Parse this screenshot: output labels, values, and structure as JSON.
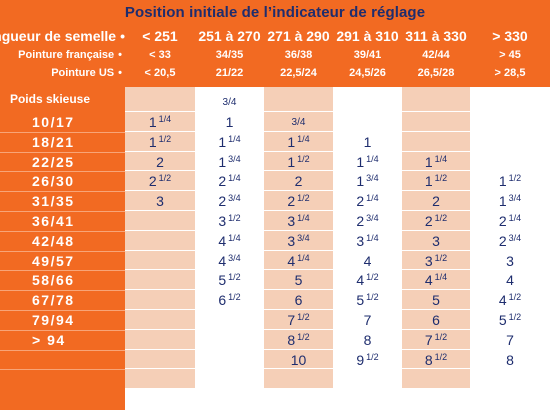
{
  "title": "Position initiale de l’indicateur de réglage",
  "header_labels": {
    "sole_length": "Longueur de semelle",
    "french_size": "Pointure française",
    "us_size": "Pointure US",
    "bullet": "•"
  },
  "columns": [
    {
      "sole": "< 251",
      "french": "< 33",
      "us": "< 20,5"
    },
    {
      "sole": "251 à 270",
      "french": "34/35",
      "us": "21/22"
    },
    {
      "sole": "271 à 290",
      "french": "36/38",
      "us": "22,5/24"
    },
    {
      "sole": "291 à 310",
      "french": "39/41",
      "us": "24,5/26"
    },
    {
      "sole": "311 à 330",
      "french": "42/44",
      "us": "26,5/28"
    },
    {
      "sole": "> 330",
      "french": "> 45",
      "us": "> 28,5"
    }
  ],
  "weight_header": "Poids skieuse",
  "weights": [
    "10/17",
    "18/21",
    "22/25",
    "26/30",
    "31/35",
    "36/41",
    "42/48",
    "49/57",
    "58/66",
    "67/78",
    "79/94",
    "> 94",
    ""
  ],
  "values": [
    [
      "",
      "3/4",
      "",
      "",
      "",
      ""
    ],
    [
      "1 1/4",
      "1",
      "3/4",
      "",
      "",
      ""
    ],
    [
      "1 1/2",
      "1 1/4",
      "1 1/4",
      "1",
      "",
      ""
    ],
    [
      "2",
      "1 3/4",
      "1 1/2",
      "1 1/4",
      "1 1/4",
      ""
    ],
    [
      "2 1/2",
      "2 1/4",
      "2",
      "1 3/4",
      "1 1/2",
      "1 1/2"
    ],
    [
      "3",
      "2 3/4",
      "2 1/2",
      "2 1/4",
      "2",
      "1 3/4"
    ],
    [
      "",
      "3 1/2",
      "3 1/4",
      "2 3/4",
      "2 1/2",
      "2 1/4"
    ],
    [
      "",
      "4 1/4",
      "3 3/4",
      "3 1/4",
      "3",
      "2 3/4"
    ],
    [
      "",
      "4 3/4",
      "4 1/4",
      "4",
      "3 1/2",
      "3"
    ],
    [
      "",
      "5 1/2",
      "5",
      "4 1/2",
      "4 1/4",
      "4"
    ],
    [
      "",
      "6 1/2",
      "6",
      "5 1/2",
      "5",
      "4 1/2"
    ],
    [
      "",
      "",
      "7 1/2",
      "7",
      "6",
      "5 1/2"
    ],
    [
      "",
      "",
      "8 1/2",
      "8",
      "7 1/2",
      "7"
    ],
    [
      "",
      "",
      "10",
      "9 1/2",
      "8 1/2",
      "8"
    ]
  ],
  "colors": {
    "orange": "#f26a22",
    "shade": "#f5cfb7",
    "text_blue": "#1e2d6e"
  }
}
